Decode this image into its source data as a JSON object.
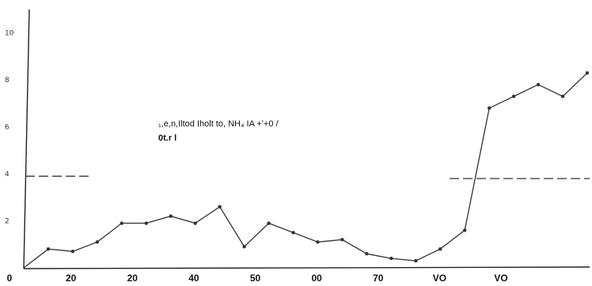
{
  "chart_data": {
    "type": "line",
    "title": "",
    "xlabel": "",
    "ylabel": "",
    "x_tick_labels": [
      "0",
      "20",
      "20",
      "40",
      "50",
      "00",
      "70",
      "VO",
      "VO"
    ],
    "y_tick_labels": [
      "2",
      "4",
      "6",
      "8",
      "10"
    ],
    "ylim": [
      0,
      11
    ],
    "grid": false,
    "annotation_line1": "₁,e,n,Iltod Iholt to, NH₄ IA +ʹ+0 /",
    "annotation_line2": "0t.r l",
    "reference_levels": [
      {
        "y": 3.9,
        "segment": "left"
      },
      {
        "y": 3.8,
        "segment": "right"
      }
    ],
    "series": [
      {
        "values": [
          0.0,
          0.8,
          0.7,
          1.1,
          1.9,
          1.9,
          2.2,
          1.9,
          2.6,
          0.9,
          1.9,
          1.5,
          1.1,
          1.2,
          0.6,
          0.4,
          0.3,
          0.8,
          1.6,
          6.8,
          7.3,
          7.8,
          7.3,
          8.3
        ],
        "color": "#333333"
      }
    ]
  }
}
